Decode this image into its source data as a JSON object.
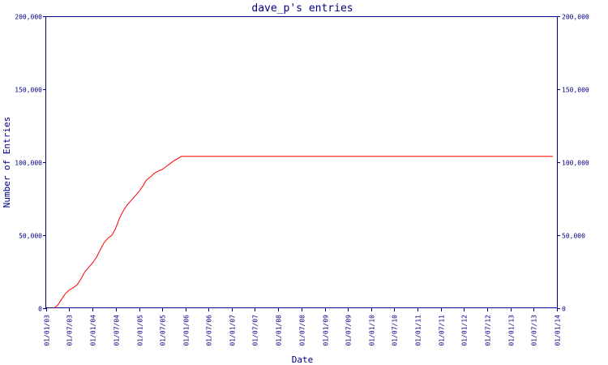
{
  "chart_data": {
    "type": "line",
    "title": "dave_p's entries",
    "xlabel": "Date",
    "ylabel": "Number of Entries",
    "ylim": [
      0,
      200000
    ],
    "y_ticks": [
      0,
      50000,
      100000,
      150000,
      200000
    ],
    "y_tick_labels": [
      "0",
      "50,000",
      "100,000",
      "150,000",
      "200,000"
    ],
    "y_axes": "left-and-right",
    "x_range": [
      "2003-01-01",
      "2014-01-01"
    ],
    "x_ticks": [
      {
        "date": "2003-01-01",
        "label": "01/01/03"
      },
      {
        "date": "2003-07-01",
        "label": "01/07/03"
      },
      {
        "date": "2004-01-01",
        "label": "01/01/04"
      },
      {
        "date": "2004-07-01",
        "label": "01/07/04"
      },
      {
        "date": "2005-01-01",
        "label": "01/01/05"
      },
      {
        "date": "2005-07-01",
        "label": "01/07/05"
      },
      {
        "date": "2006-01-01",
        "label": "01/01/06"
      },
      {
        "date": "2006-07-01",
        "label": "01/07/06"
      },
      {
        "date": "2007-01-01",
        "label": "01/01/07"
      },
      {
        "date": "2007-07-01",
        "label": "01/07/07"
      },
      {
        "date": "2008-01-01",
        "label": "01/01/08"
      },
      {
        "date": "2008-07-01",
        "label": "01/07/08"
      },
      {
        "date": "2009-01-01",
        "label": "01/01/09"
      },
      {
        "date": "2009-07-01",
        "label": "01/07/09"
      },
      {
        "date": "2010-01-01",
        "label": "01/01/10"
      },
      {
        "date": "2010-07-01",
        "label": "01/07/10"
      },
      {
        "date": "2011-01-01",
        "label": "01/01/11"
      },
      {
        "date": "2011-07-01",
        "label": "01/07/11"
      },
      {
        "date": "2012-01-01",
        "label": "01/01/12"
      },
      {
        "date": "2012-07-01",
        "label": "01/07/12"
      },
      {
        "date": "2013-01-01",
        "label": "01/01/13"
      },
      {
        "date": "2013-07-01",
        "label": "01/07/13"
      },
      {
        "date": "2014-01-01",
        "label": "01/01/14"
      }
    ],
    "grid": false,
    "series": [
      {
        "color": "#ff0000",
        "points": [
          {
            "x": "2003-03-01",
            "y": 0
          },
          {
            "x": "2003-04-01",
            "y": 2000
          },
          {
            "x": "2003-05-01",
            "y": 6000
          },
          {
            "x": "2003-06-01",
            "y": 10000
          },
          {
            "x": "2003-07-01",
            "y": 12500
          },
          {
            "x": "2003-08-01",
            "y": 14000
          },
          {
            "x": "2003-09-01",
            "y": 16000
          },
          {
            "x": "2003-10-01",
            "y": 20000
          },
          {
            "x": "2003-11-01",
            "y": 25000
          },
          {
            "x": "2003-12-01",
            "y": 28000
          },
          {
            "x": "2004-01-01",
            "y": 31000
          },
          {
            "x": "2004-02-01",
            "y": 35000
          },
          {
            "x": "2004-03-01",
            "y": 40000
          },
          {
            "x": "2004-04-01",
            "y": 45000
          },
          {
            "x": "2004-05-01",
            "y": 48000
          },
          {
            "x": "2004-06-01",
            "y": 50000
          },
          {
            "x": "2004-07-01",
            "y": 55000
          },
          {
            "x": "2004-08-01",
            "y": 62000
          },
          {
            "x": "2004-09-01",
            "y": 67000
          },
          {
            "x": "2004-10-01",
            "y": 71000
          },
          {
            "x": "2004-11-01",
            "y": 74000
          },
          {
            "x": "2004-12-01",
            "y": 77000
          },
          {
            "x": "2005-01-01",
            "y": 80000
          },
          {
            "x": "2005-02-01",
            "y": 84000
          },
          {
            "x": "2005-03-01",
            "y": 88000
          },
          {
            "x": "2005-04-01",
            "y": 90000
          },
          {
            "x": "2005-05-01",
            "y": 92500
          },
          {
            "x": "2005-06-01",
            "y": 94000
          },
          {
            "x": "2005-07-01",
            "y": 95000
          },
          {
            "x": "2005-08-01",
            "y": 97000
          },
          {
            "x": "2005-09-01",
            "y": 99000
          },
          {
            "x": "2005-10-01",
            "y": 101000
          },
          {
            "x": "2005-11-01",
            "y": 102500
          },
          {
            "x": "2005-12-01",
            "y": 104000
          },
          {
            "x": "2013-12-01",
            "y": 104000
          }
        ]
      }
    ]
  }
}
